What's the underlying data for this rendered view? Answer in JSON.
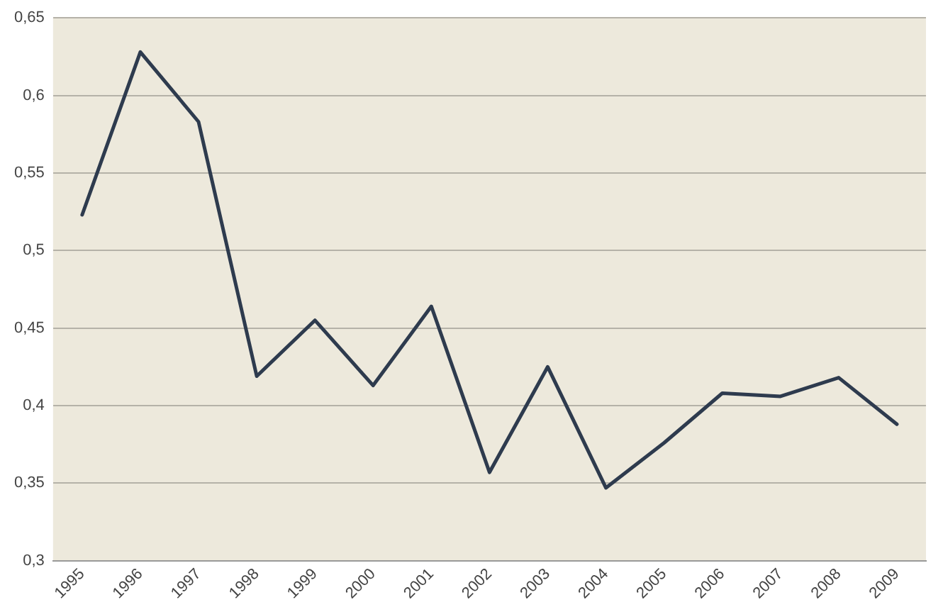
{
  "chart_data": {
    "type": "line",
    "categories": [
      "1995",
      "1996",
      "1997",
      "1998",
      "1999",
      "2000",
      "2001",
      "2002",
      "2003",
      "2004",
      "2005",
      "2006",
      "2007",
      "2008",
      "2009"
    ],
    "series": [
      {
        "color": "#2e3b4e",
        "values": [
          0.523,
          0.628,
          0.583,
          0.419,
          0.455,
          0.413,
          0.464,
          0.357,
          0.425,
          0.347,
          0.376,
          0.408,
          0.406,
          0.418,
          0.388
        ]
      }
    ],
    "ylim": [
      0.3,
      0.65
    ],
    "yticks": [
      {
        "value": 0.3,
        "label": "0,3"
      },
      {
        "value": 0.35,
        "label": "0,35"
      },
      {
        "value": 0.4,
        "label": "0,4"
      },
      {
        "value": 0.45,
        "label": "0,45"
      },
      {
        "value": 0.5,
        "label": "0,5"
      },
      {
        "value": 0.55,
        "label": "0,55"
      },
      {
        "value": 0.6,
        "label": "0,6"
      },
      {
        "value": 0.65,
        "label": "0,65"
      }
    ],
    "grid": "y",
    "legend": false,
    "marker": "none",
    "line_style": "solid"
  }
}
